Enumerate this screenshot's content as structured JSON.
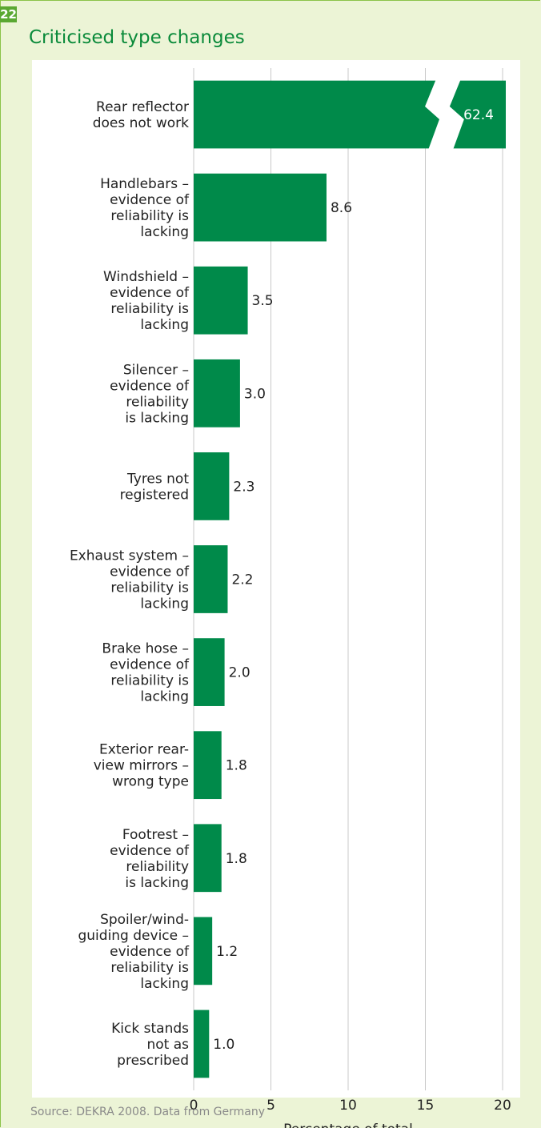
{
  "figure_number": "22",
  "source": "Source: DEKRA 2008. Data from Germany",
  "colors": {
    "bar": "#008a4a",
    "accent": "#5aa832",
    "grid": "#c8c8c8"
  },
  "chart_data": {
    "type": "bar",
    "orientation": "horizontal",
    "title": "Criticised type changes",
    "xlabel": "Percentage of total",
    "ylabel": "",
    "xlim": [
      0,
      20
    ],
    "xticks": [
      0,
      5,
      10,
      15,
      20
    ],
    "grid": true,
    "broken_axis_category": "Rear reflector does not work",
    "categories": [
      [
        "Rear reflector",
        "does not work"
      ],
      [
        "Handlebars –",
        "evidence of",
        "reliability is",
        "lacking"
      ],
      [
        "Windshield –",
        "evidence of",
        "reliability is",
        "lacking"
      ],
      [
        "Silencer –",
        "evidence of",
        "reliability",
        "is lacking"
      ],
      [
        "Tyres not",
        "registered"
      ],
      [
        "Exhaust system –",
        "evidence of",
        "reliability is",
        "lacking"
      ],
      [
        "Brake hose –",
        "evidence of",
        "reliability is",
        "lacking"
      ],
      [
        "Exterior rear-",
        "view mirrors –",
        "wrong type"
      ],
      [
        "Footrest –",
        "evidence of",
        "reliability",
        "is lacking"
      ],
      [
        "Spoiler/wind-",
        "guiding device –",
        "evidence of",
        "reliability is",
        "lacking"
      ],
      [
        "Kick stands",
        "not as",
        "prescribed"
      ]
    ],
    "values": [
      62.4,
      8.6,
      3.5,
      3.0,
      2.3,
      2.2,
      2.0,
      1.8,
      1.8,
      1.2,
      1.0
    ],
    "value_labels": [
      "62.4",
      "8.6",
      "3.5",
      "3.0",
      "2.3",
      "2.2",
      "2.0",
      "1.8",
      "1.8",
      "1.2",
      "1.0"
    ]
  }
}
